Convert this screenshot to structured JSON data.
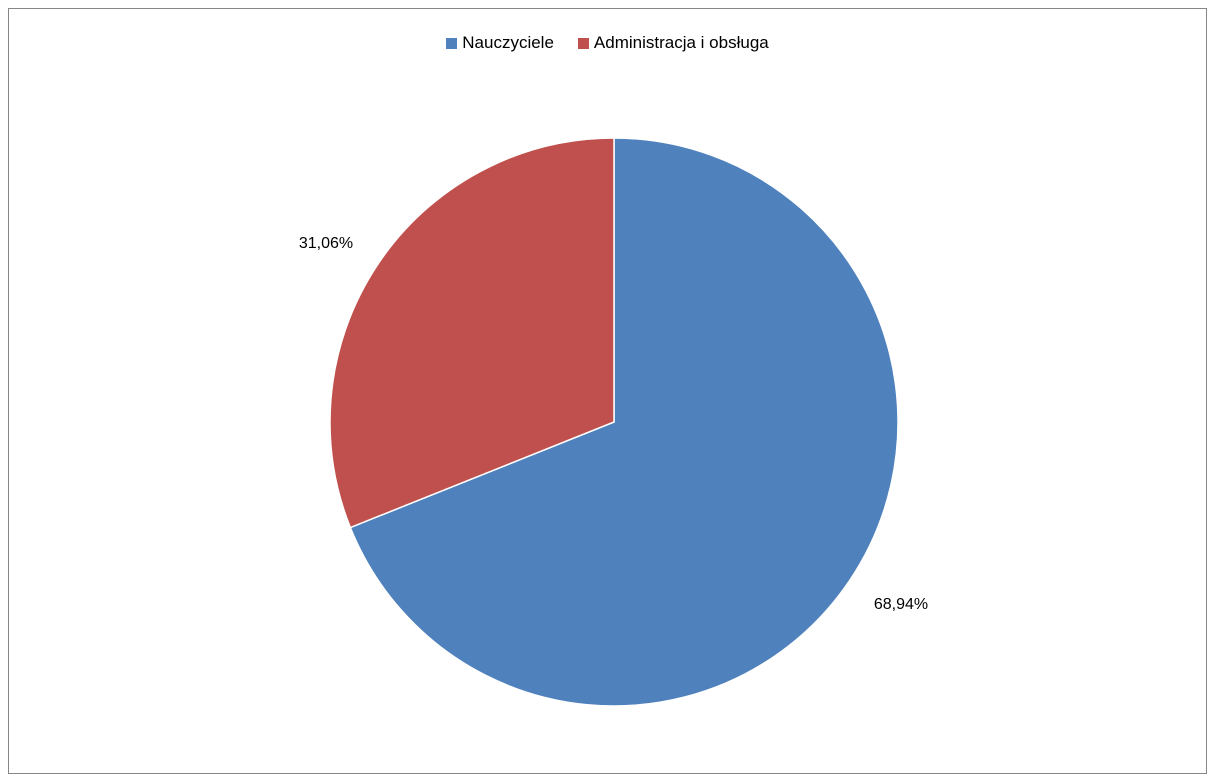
{
  "chart_data": {
    "type": "pie",
    "title": "",
    "series": [
      {
        "name": "Nauczyciele",
        "value": 68.94,
        "label": "68,94%",
        "color": "#4F81BD"
      },
      {
        "name": "Administracja i obsługa",
        "value": 31.06,
        "label": "31,06%",
        "color": "#C0504D"
      }
    ],
    "start_angle_deg": 0,
    "direction": "clockwise",
    "legend_position": "top"
  }
}
